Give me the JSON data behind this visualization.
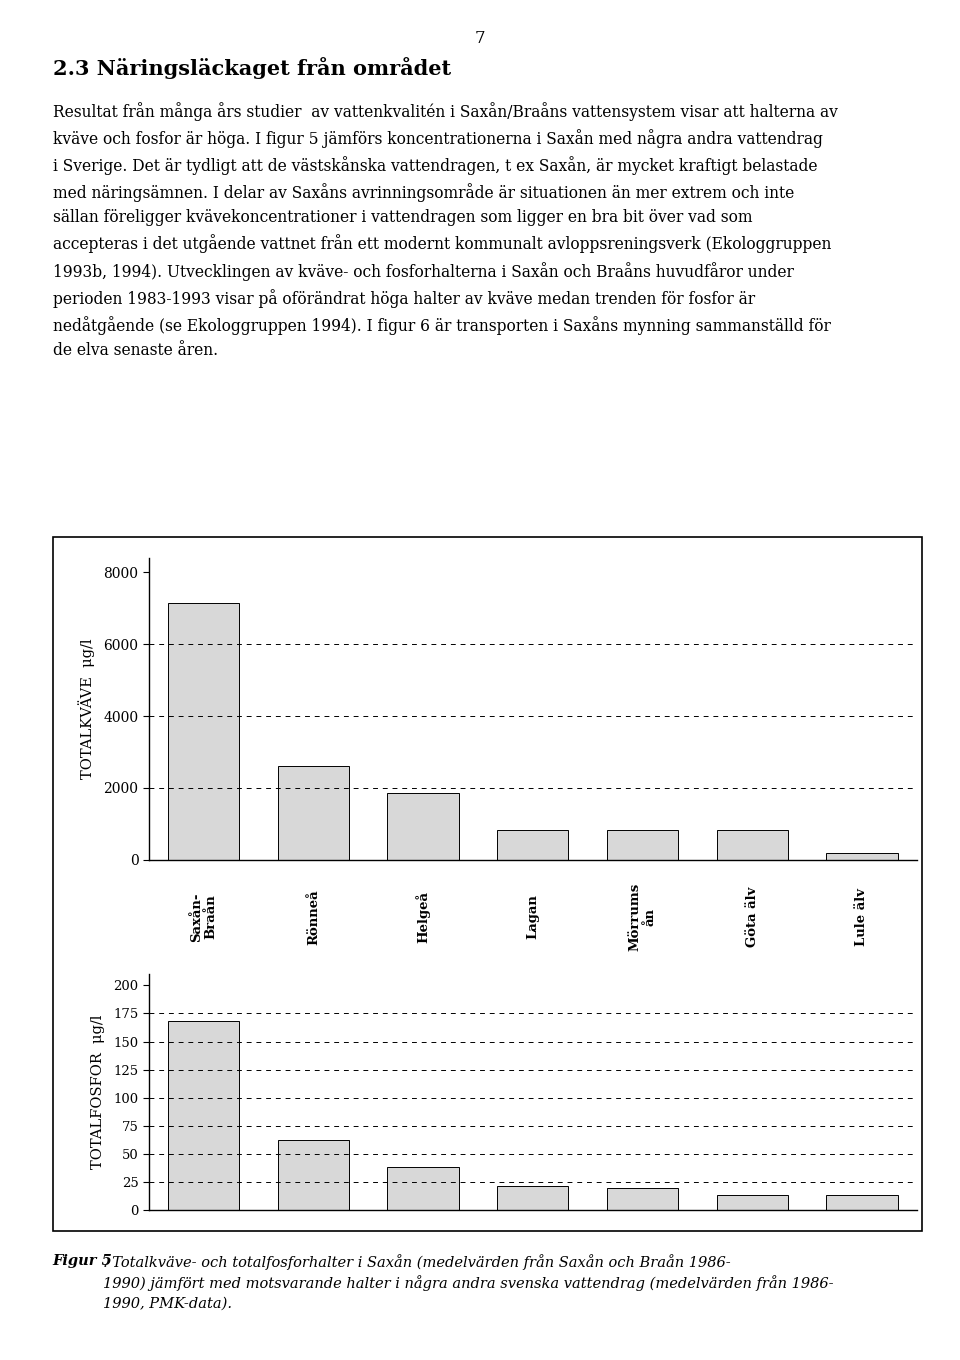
{
  "categories": [
    "Saxån-\nBraån",
    "Rönneå",
    "Helgeå",
    "Lagan",
    "Mörrums\nån",
    "Göta älv",
    "Lule älv"
  ],
  "nitrogen_values": [
    7150,
    2600,
    1850,
    820,
    820,
    820,
    200
  ],
  "phosphorus_values": [
    168,
    62,
    38,
    21,
    20,
    13,
    13
  ],
  "nitrogen_yticks": [
    0,
    2000,
    4000,
    6000,
    8000
  ],
  "nitrogen_ylim": [
    0,
    8400
  ],
  "phosphorus_yticks": [
    0,
    25,
    50,
    75,
    100,
    125,
    150,
    175,
    200
  ],
  "phosphorus_ylim": [
    0,
    210
  ],
  "nitrogen_ylabel": "TOTALKVÄVE  μg/l",
  "phosphorus_ylabel": "TOTALFOSFOR  μg/l",
  "nitrogen_gridlines": [
    2000,
    4000,
    6000
  ],
  "phosphorus_gridlines": [
    25,
    50,
    75,
    100,
    125,
    150,
    175
  ],
  "bar_color": "#d8d8d8",
  "bar_edge_color": "#000000",
  "background_color": "#ffffff",
  "page_number": "7",
  "section_title": "2.3 Näringsläckaget från området",
  "body_lines": [
    "Resultat från många års studier  av vattenkvalitén i Saxån/Braåns vattensystem visar att halterna av",
    "kväve och fosfor är höga. I figur 5 jämförs koncentrationerna i Saxån med några andra vattendrag",
    "i Sverige. Det är tydligt att de västskånska vattendragen, t ex Saxån, är mycket kraftigt belastade",
    "med näringsämnen. I delar av Saxåns avrinningsområde är situationen än mer extrem och inte",
    "sällan föreligger kvävekoncentrationer i vattendragen som ligger en bra bit över vad som",
    "accepteras i det utgående vattnet från ett modernt kommunalt avloppsreningsverk (Ekologgruppen",
    "1993b, 1994). Utvecklingen av kväve- och fosforhalterna i Saxån och Braåns huvudfåror under",
    "perioden 1983-1993 visar på oförändrat höga halter av kväve medan trenden för fosfor är",
    "nedåtgående (se Ekologgruppen 1994). I figur 6 är transporten i Saxåns mynning sammanställd för",
    "de elva senaste åren."
  ],
  "caption_bold": "Figur 5",
  "caption_rest": ". Totalkväve- och totalfosforhalter i Saxån (medelvärden från Saxån och Braån 1986-\n1990) jämfört med motsvarande halter i några andra svenska vattendrag (medelvärden från 1986-\n1990, PMK-data).",
  "outer_box_color": "#000000",
  "font_family": "DejaVu Serif"
}
